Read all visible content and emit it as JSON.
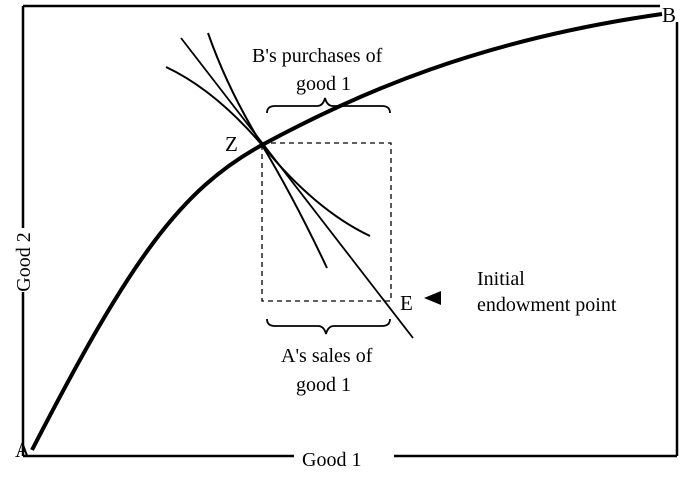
{
  "labels": {
    "corner_a": "A",
    "corner_b": "B",
    "point_z": "Z",
    "point_e": "E",
    "x_axis": "Good 1",
    "y_axis": "Good 2",
    "top_brace_line1": "B's purchases of",
    "top_brace_line2": "good 1",
    "bottom_brace_line1": "A's sales of",
    "bottom_brace_line2": "good 1",
    "endowment_line1": "Initial",
    "endowment_line2": "endowment point"
  },
  "colors": {
    "ink": "#000000",
    "background": "#ffffff"
  }
}
